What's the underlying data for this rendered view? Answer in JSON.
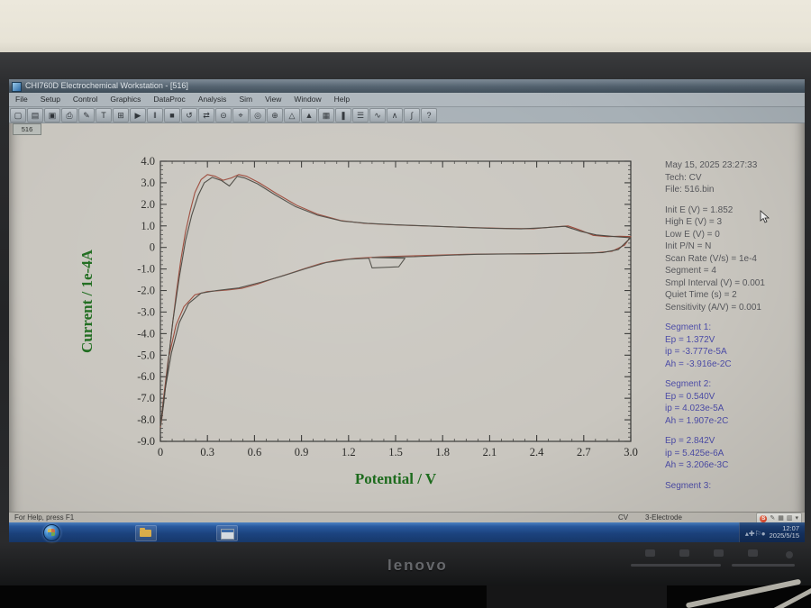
{
  "scene": {
    "brand": "lenovo",
    "wall_color": "#e9e5d9",
    "bezel_color": "#232426"
  },
  "window": {
    "title": "CHI760D Electrochemical Workstation - [516]",
    "menus": [
      "File",
      "Setup",
      "Control",
      "Graphics",
      "DataProc",
      "Analysis",
      "Sim",
      "View",
      "Window",
      "Help"
    ],
    "toolbar_icons": [
      {
        "glyph": "▢",
        "name": "new-icon"
      },
      {
        "glyph": "▤",
        "name": "open-icon"
      },
      {
        "glyph": "▣",
        "name": "save-icon"
      },
      {
        "glyph": "⎙",
        "name": "print-icon"
      },
      {
        "glyph": "✎",
        "name": "edit-icon"
      },
      {
        "glyph": "T",
        "name": "text-tool-icon"
      },
      {
        "glyph": "⊞",
        "name": "grid-icon"
      },
      {
        "glyph": "▶",
        "name": "run-icon"
      },
      {
        "glyph": "‖",
        "name": "pause-icon"
      },
      {
        "glyph": "■",
        "name": "stop-icon"
      },
      {
        "glyph": "↺",
        "name": "repeat-icon"
      },
      {
        "glyph": "⇄",
        "name": "reverse-scan-icon"
      },
      {
        "glyph": "⊝",
        "name": "deaerate-icon"
      },
      {
        "glyph": "⌖",
        "name": "cell-control-icon"
      },
      {
        "glyph": "◎",
        "name": "zoom-icon"
      },
      {
        "glyph": "⊕",
        "name": "zoom-in-icon"
      },
      {
        "glyph": "△",
        "name": "peak-anodic-icon"
      },
      {
        "glyph": "▲",
        "name": "peak-cathodic-icon"
      },
      {
        "glyph": "▦",
        "name": "data-listing-icon"
      },
      {
        "glyph": "❚",
        "name": "bars-icon"
      },
      {
        "glyph": "☰",
        "name": "overlay-icon"
      },
      {
        "glyph": "∿",
        "name": "smooth-icon"
      },
      {
        "glyph": "∧",
        "name": "derivative-icon"
      },
      {
        "glyph": "∫",
        "name": "integrate-icon"
      },
      {
        "glyph": "?",
        "name": "help-icon"
      }
    ],
    "doc_tab": "516"
  },
  "info": {
    "datetime": "May 15, 2025   23:27:33",
    "tech": "Tech: CV",
    "file": "File: 516.bin",
    "params": [
      "Init E (V) = 1.852",
      "High E (V) = 3",
      "Low E (V) = 0",
      "Init P/N = N",
      "Scan Rate (V/s) = 1e-4",
      "Segment = 4",
      "Smpl Interval (V) = 0.001",
      "Quiet Time (s) = 2",
      "Sensitivity (A/V) = 0.001"
    ],
    "segments": [
      {
        "title": "Segment 1:",
        "lines": [
          "Ep = 1.372V",
          "ip = -3.777e-5A",
          "Ah = -3.916e-2C"
        ]
      },
      {
        "title": "Segment 2:",
        "lines": [
          "Ep = 0.540V",
          "ip = 4.023e-5A",
          "Ah = 1.907e-2C"
        ]
      },
      {
        "title": "",
        "lines": [
          "Ep = 2.842V",
          "ip = 5.425e-6A",
          "Ah = 3.206e-3C"
        ]
      },
      {
        "title": "Segment 3:",
        "lines": []
      }
    ]
  },
  "statusbar": {
    "left": "For Help, press F1",
    "tech": "CV",
    "electrode": "3-Electrode"
  },
  "taskbar": {
    "tray_icons": [
      "▴",
      "✚",
      "⚐",
      "●"
    ],
    "sogou_glyphs": [
      "✎",
      "▦",
      "▥",
      "▾"
    ],
    "clock_time": "12:07",
    "clock_date": "2025/5/15"
  },
  "chart_data": {
    "type": "line",
    "title": "",
    "xlabel": "Potential / V",
    "ylabel": "Current / 1e-4A",
    "xlim": [
      0,
      3
    ],
    "ylim": [
      -9,
      4
    ],
    "xtick_values": [
      0,
      0.3,
      0.6,
      0.9,
      1.2,
      1.5,
      1.8,
      2.1,
      2.4,
      2.7,
      3.0
    ],
    "xtick_labels": [
      "0",
      "0.3",
      "0.6",
      "0.9",
      "1.2",
      "1.5",
      "1.8",
      "2.1",
      "2.4",
      "2.7",
      "3.0"
    ],
    "ytick_values": [
      4,
      3,
      2,
      1,
      0,
      -1,
      -2,
      -3,
      -4,
      -5,
      -6,
      -7,
      -8,
      -9
    ],
    "ytick_labels": [
      "4.0",
      "3.0",
      "2.0",
      "1.0",
      "0",
      "-1.0",
      "-2.0",
      "-3.0",
      "-4.0",
      "-5.0",
      "-6.0",
      "-7.0",
      "-8.0",
      "-9.0"
    ],
    "x_minor_step": 0.075,
    "y_minor_step": 0.2,
    "grid": false,
    "legend": "none",
    "axis_color": "#3a3a38",
    "tick_label_color": "#2a2a28",
    "axis_title_color": "#1d6b1d",
    "series": [
      {
        "name": "cv-scan-1",
        "color": "#9a4636",
        "points": [
          [
            0.0,
            -8.35
          ],
          [
            0.02,
            -7.0
          ],
          [
            0.05,
            -5.2
          ],
          [
            0.1,
            -3.6
          ],
          [
            0.15,
            -2.75
          ],
          [
            0.22,
            -2.2
          ],
          [
            0.3,
            -2.05
          ],
          [
            0.42,
            -1.98
          ],
          [
            0.52,
            -1.9
          ],
          [
            0.62,
            -1.7
          ],
          [
            0.72,
            -1.45
          ],
          [
            0.82,
            -1.22
          ],
          [
            0.92,
            -0.98
          ],
          [
            1.02,
            -0.75
          ],
          [
            1.12,
            -0.6
          ],
          [
            1.25,
            -0.5
          ],
          [
            1.4,
            -0.44
          ],
          [
            1.55,
            -0.4
          ],
          [
            1.75,
            -0.36
          ],
          [
            1.95,
            -0.32
          ],
          [
            2.15,
            -0.3
          ],
          [
            2.35,
            -0.3
          ],
          [
            2.55,
            -0.28
          ],
          [
            2.75,
            -0.26
          ],
          [
            2.88,
            -0.18
          ],
          [
            2.96,
            0.1
          ],
          [
            3.0,
            0.5
          ],
          [
            2.93,
            0.52
          ],
          [
            2.85,
            0.5
          ],
          [
            2.76,
            0.56
          ],
          [
            2.68,
            0.8
          ],
          [
            2.6,
            1.0
          ],
          [
            2.5,
            0.95
          ],
          [
            2.38,
            0.87
          ],
          [
            2.2,
            0.88
          ],
          [
            2.0,
            0.92
          ],
          [
            1.8,
            0.97
          ],
          [
            1.6,
            1.02
          ],
          [
            1.45,
            1.06
          ],
          [
            1.3,
            1.12
          ],
          [
            1.15,
            1.25
          ],
          [
            1.0,
            1.55
          ],
          [
            0.87,
            1.95
          ],
          [
            0.74,
            2.5
          ],
          [
            0.63,
            3.0
          ],
          [
            0.55,
            3.3
          ],
          [
            0.5,
            3.38
          ],
          [
            0.45,
            3.22
          ],
          [
            0.4,
            3.12
          ],
          [
            0.35,
            3.3
          ],
          [
            0.3,
            3.38
          ],
          [
            0.26,
            3.15
          ],
          [
            0.22,
            2.55
          ],
          [
            0.19,
            1.7
          ],
          [
            0.16,
            0.7
          ],
          [
            0.13,
            -0.6
          ],
          [
            0.1,
            -2.2
          ],
          [
            0.07,
            -4.0
          ],
          [
            0.04,
            -6.0
          ],
          [
            0.01,
            -7.9
          ],
          [
            0.0,
            -8.35
          ]
        ]
      },
      {
        "name": "cv-scan-2",
        "color": "#48463f",
        "points": [
          [
            0.0,
            -8.3
          ],
          [
            0.03,
            -6.6
          ],
          [
            0.07,
            -4.9
          ],
          [
            0.12,
            -3.5
          ],
          [
            0.18,
            -2.6
          ],
          [
            0.26,
            -2.12
          ],
          [
            0.36,
            -2.0
          ],
          [
            0.5,
            -1.88
          ],
          [
            0.64,
            -1.62
          ],
          [
            0.78,
            -1.32
          ],
          [
            0.92,
            -1.0
          ],
          [
            1.06,
            -0.7
          ],
          [
            1.2,
            -0.55
          ],
          [
            1.33,
            -0.5
          ],
          [
            1.35,
            -0.95
          ],
          [
            1.52,
            -0.9
          ],
          [
            1.56,
            -0.5
          ],
          [
            1.35,
            -0.47
          ],
          [
            1.62,
            -0.43
          ],
          [
            1.82,
            -0.37
          ],
          [
            2.02,
            -0.32
          ],
          [
            2.22,
            -0.3
          ],
          [
            2.42,
            -0.29
          ],
          [
            2.62,
            -0.27
          ],
          [
            2.82,
            -0.24
          ],
          [
            2.92,
            -0.1
          ],
          [
            3.0,
            0.45
          ],
          [
            2.9,
            0.5
          ],
          [
            2.78,
            0.58
          ],
          [
            2.68,
            0.75
          ],
          [
            2.58,
            0.98
          ],
          [
            2.46,
            0.92
          ],
          [
            2.3,
            0.86
          ],
          [
            2.1,
            0.89
          ],
          [
            1.9,
            0.94
          ],
          [
            1.7,
            1.0
          ],
          [
            1.5,
            1.05
          ],
          [
            1.32,
            1.12
          ],
          [
            1.16,
            1.22
          ],
          [
            1.0,
            1.5
          ],
          [
            0.86,
            1.9
          ],
          [
            0.73,
            2.45
          ],
          [
            0.62,
            2.95
          ],
          [
            0.54,
            3.22
          ],
          [
            0.49,
            3.3
          ],
          [
            0.44,
            2.85
          ],
          [
            0.39,
            3.1
          ],
          [
            0.33,
            3.25
          ],
          [
            0.28,
            3.0
          ],
          [
            0.24,
            2.4
          ],
          [
            0.2,
            1.5
          ],
          [
            0.16,
            0.3
          ],
          [
            0.12,
            -1.4
          ],
          [
            0.08,
            -3.4
          ],
          [
            0.05,
            -5.3
          ],
          [
            0.02,
            -7.3
          ],
          [
            0.0,
            -8.3
          ]
        ]
      }
    ]
  }
}
